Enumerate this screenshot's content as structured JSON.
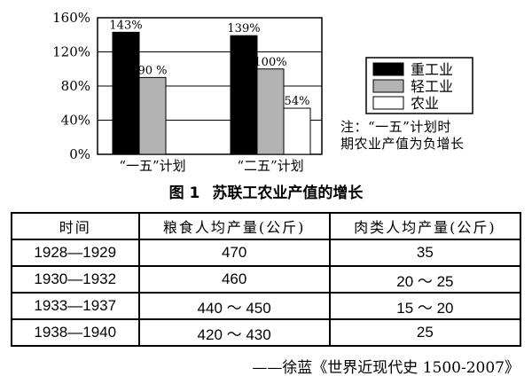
{
  "chart_data": {
    "type": "bar",
    "title": "苏联工农业产值的增长",
    "figure_label": "图 1",
    "categories": [
      "“一五”计划",
      "“二五”计划"
    ],
    "series": [
      {
        "name": "重工业",
        "values": [
          143,
          139
        ],
        "labels": [
          "143%",
          "139%"
        ],
        "color": "#000000"
      },
      {
        "name": "轻工业",
        "values": [
          90,
          100
        ],
        "labels": [
          "90 %",
          "100%"
        ],
        "color": "#b3b3b3"
      },
      {
        "name": "农业",
        "values": [
          null,
          54
        ],
        "labels": [
          "",
          "54%"
        ],
        "color": "#ffffff"
      }
    ],
    "yticks": [
      "0%",
      "40%",
      "80%",
      "120%",
      "160%"
    ],
    "ylim": [
      0,
      160
    ],
    "legend_position": "right",
    "note": [
      "注：“一五”计划时",
      "期农业产值为负增长"
    ]
  },
  "table": {
    "headers": [
      "时间",
      "粮食人均产量(公斤)",
      "肉类人均产量(公斤)"
    ],
    "rows": [
      [
        "1928—1929",
        "470",
        "35"
      ],
      [
        "1930—1932",
        "460",
        "20 ～ 25"
      ],
      [
        "1933—1937",
        "440 ～ 450",
        "15 ～ 20"
      ],
      [
        "1938—1940",
        "420 ～ 430",
        "25"
      ]
    ]
  },
  "source": "——徐蓝《世界近现代史 1500-2007》"
}
